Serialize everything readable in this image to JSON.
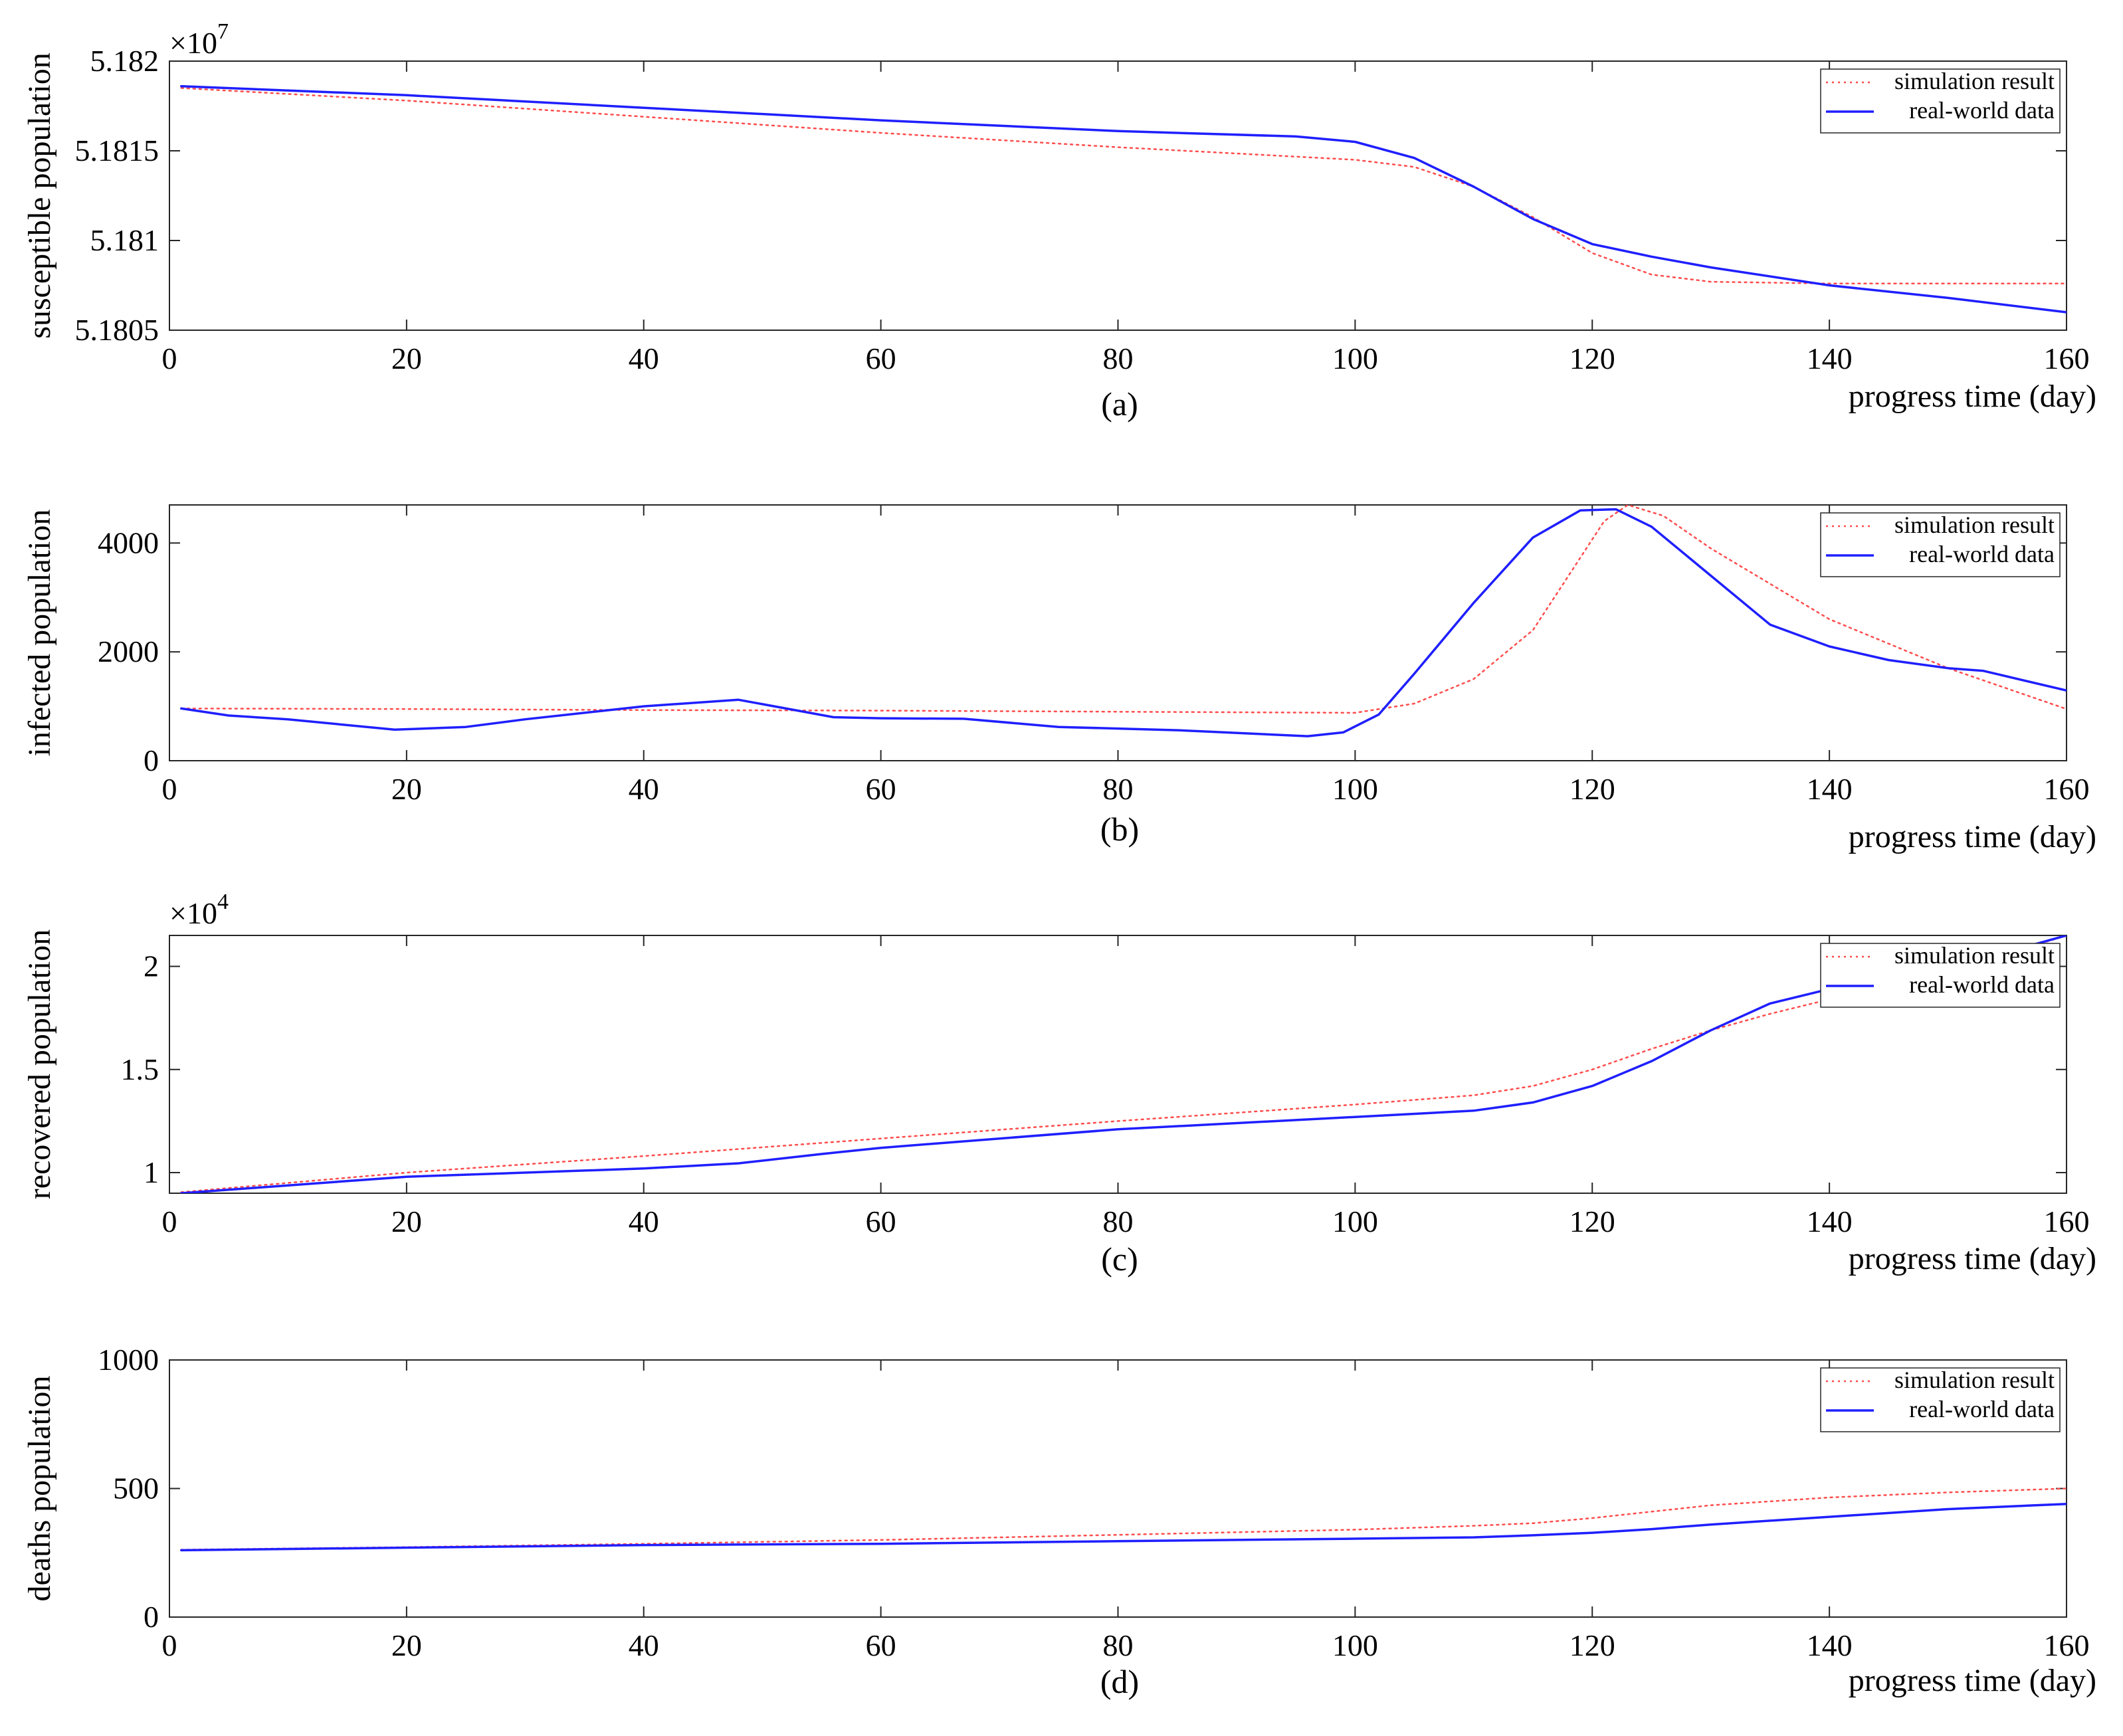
{
  "chart_data": [
    {
      "type": "line",
      "panel": "(a)",
      "ylabel": "susceptible population",
      "xlabel": "progress time (day)",
      "multiplier": "×10",
      "multiplier_exp": "7",
      "xlim": [
        0,
        160
      ],
      "ylim": [
        5.1805,
        5.182
      ],
      "xticks": [
        0,
        20,
        40,
        60,
        80,
        100,
        120,
        140,
        160
      ],
      "yticks": [
        5.1805,
        5.181,
        5.1815,
        5.182
      ],
      "yticklabels": [
        "5.1805",
        "5.181",
        "5.1815",
        "5.182"
      ],
      "legend": {
        "position": "top-right"
      },
      "series": [
        {
          "name": "simulation result",
          "style": "dotted",
          "color": "#ff4d4d",
          "x": [
            1,
            20,
            40,
            60,
            80,
            100,
            105,
            110,
            115,
            120,
            125,
            130,
            140,
            150,
            160
          ],
          "y": [
            5.18185,
            5.18178,
            5.18169,
            5.1816,
            5.18152,
            5.18145,
            5.18141,
            5.1813,
            5.18113,
            5.18093,
            5.18081,
            5.18077,
            5.18076,
            5.18076,
            5.18076
          ]
        },
        {
          "name": "real-world data",
          "style": "solid",
          "color": "#1f1fff",
          "x": [
            1,
            20,
            40,
            60,
            80,
            95,
            100,
            105,
            110,
            115,
            120,
            125,
            130,
            140,
            150,
            160
          ],
          "y": [
            5.18186,
            5.18181,
            5.18174,
            5.18167,
            5.18161,
            5.18158,
            5.18155,
            5.18146,
            5.1813,
            5.18112,
            5.18098,
            5.18091,
            5.18085,
            5.18075,
            5.18068,
            5.1806
          ]
        }
      ]
    },
    {
      "type": "line",
      "panel": "(b)",
      "ylabel": "infected population",
      "xlabel": "progress time (day)",
      "xlim": [
        0,
        160
      ],
      "ylim": [
        0,
        4700
      ],
      "xticks": [
        0,
        20,
        40,
        60,
        80,
        100,
        120,
        140,
        160
      ],
      "yticks": [
        0,
        2000,
        4000
      ],
      "yticklabels": [
        "0",
        "2000",
        "4000"
      ],
      "legend": {
        "position": "top-right"
      },
      "series": [
        {
          "name": "simulation result",
          "style": "dotted",
          "color": "#ff4d4d",
          "x": [
            1,
            20,
            40,
            60,
            80,
            100,
            105,
            110,
            115,
            118,
            121,
            123,
            126,
            130,
            140,
            150,
            160
          ],
          "y": [
            960,
            950,
            930,
            920,
            900,
            880,
            1050,
            1500,
            2400,
            3400,
            4400,
            4700,
            4500,
            3900,
            2600,
            1700,
            950
          ]
        },
        {
          "name": "real-world data",
          "style": "solid",
          "color": "#1f1fff",
          "x": [
            1,
            5,
            10,
            19,
            25,
            30,
            40,
            48,
            52,
            56,
            60,
            67,
            75,
            85,
            96,
            99,
            102,
            105,
            110,
            115,
            119,
            122,
            125,
            130,
            135,
            140,
            145,
            150,
            153,
            160
          ],
          "y": [
            960,
            830,
            760,
            570,
            620,
            760,
            1000,
            1120,
            960,
            800,
            780,
            770,
            620,
            560,
            450,
            520,
            850,
            1600,
            2900,
            4100,
            4600,
            4620,
            4300,
            3400,
            2500,
            2100,
            1850,
            1700,
            1650,
            1290
          ]
        }
      ]
    },
    {
      "type": "line",
      "panel": "(c)",
      "ylabel": "recovered population",
      "xlabel": "progress time (day)",
      "multiplier": "×10",
      "multiplier_exp": "4",
      "xlim": [
        0,
        160
      ],
      "ylim": [
        0.9,
        2.15
      ],
      "xticks": [
        0,
        20,
        40,
        60,
        80,
        100,
        120,
        140,
        160
      ],
      "yticks": [
        1,
        1.5,
        2
      ],
      "yticklabels": [
        "1",
        "1.5",
        "2"
      ],
      "legend": {
        "position": "top-right"
      },
      "series": [
        {
          "name": "simulation result",
          "style": "dotted",
          "color": "#ff4d4d",
          "x": [
            1,
            20,
            40,
            60,
            80,
            100,
            110,
            115,
            120,
            125,
            130,
            135,
            140,
            145,
            150,
            155,
            160
          ],
          "y": [
            0.905,
            1.0,
            1.08,
            1.165,
            1.25,
            1.33,
            1.375,
            1.42,
            1.5,
            1.6,
            1.69,
            1.77,
            1.84,
            1.91,
            1.97,
            2.06,
            2.15
          ]
        },
        {
          "name": "real-world data",
          "style": "solid",
          "color": "#1f1fff",
          "x": [
            1,
            20,
            40,
            48,
            55,
            60,
            80,
            100,
            110,
            115,
            120,
            125,
            130,
            135,
            140,
            145,
            150,
            155,
            160
          ],
          "y": [
            0.9,
            0.98,
            1.02,
            1.045,
            1.09,
            1.12,
            1.21,
            1.27,
            1.3,
            1.34,
            1.42,
            1.54,
            1.69,
            1.82,
            1.89,
            1.93,
            1.99,
            2.07,
            2.15
          ]
        }
      ]
    },
    {
      "type": "line",
      "panel": "(d)",
      "ylabel": "deaths population",
      "xlabel": "progress time (day)",
      "xlim": [
        0,
        160
      ],
      "ylim": [
        0,
        1000
      ],
      "xticks": [
        0,
        20,
        40,
        60,
        80,
        100,
        120,
        140,
        160
      ],
      "yticks": [
        0,
        500,
        1000
      ],
      "yticklabels": [
        "0",
        "500",
        "1000"
      ],
      "legend": {
        "position": "top-right"
      },
      "series": [
        {
          "name": "simulation result",
          "style": "dotted",
          "color": "#ff4d4d",
          "x": [
            1,
            20,
            40,
            60,
            80,
            100,
            110,
            115,
            120,
            125,
            130,
            140,
            150,
            160
          ],
          "y": [
            262,
            272,
            285,
            300,
            320,
            340,
            355,
            365,
            385,
            410,
            435,
            465,
            485,
            500
          ]
        },
        {
          "name": "real-world data",
          "style": "solid",
          "color": "#1f1fff",
          "x": [
            1,
            20,
            40,
            60,
            80,
            100,
            110,
            115,
            120,
            125,
            130,
            140,
            150,
            160
          ],
          "y": [
            260,
            270,
            280,
            285,
            295,
            305,
            310,
            318,
            328,
            342,
            360,
            390,
            420,
            440
          ]
        }
      ]
    }
  ]
}
